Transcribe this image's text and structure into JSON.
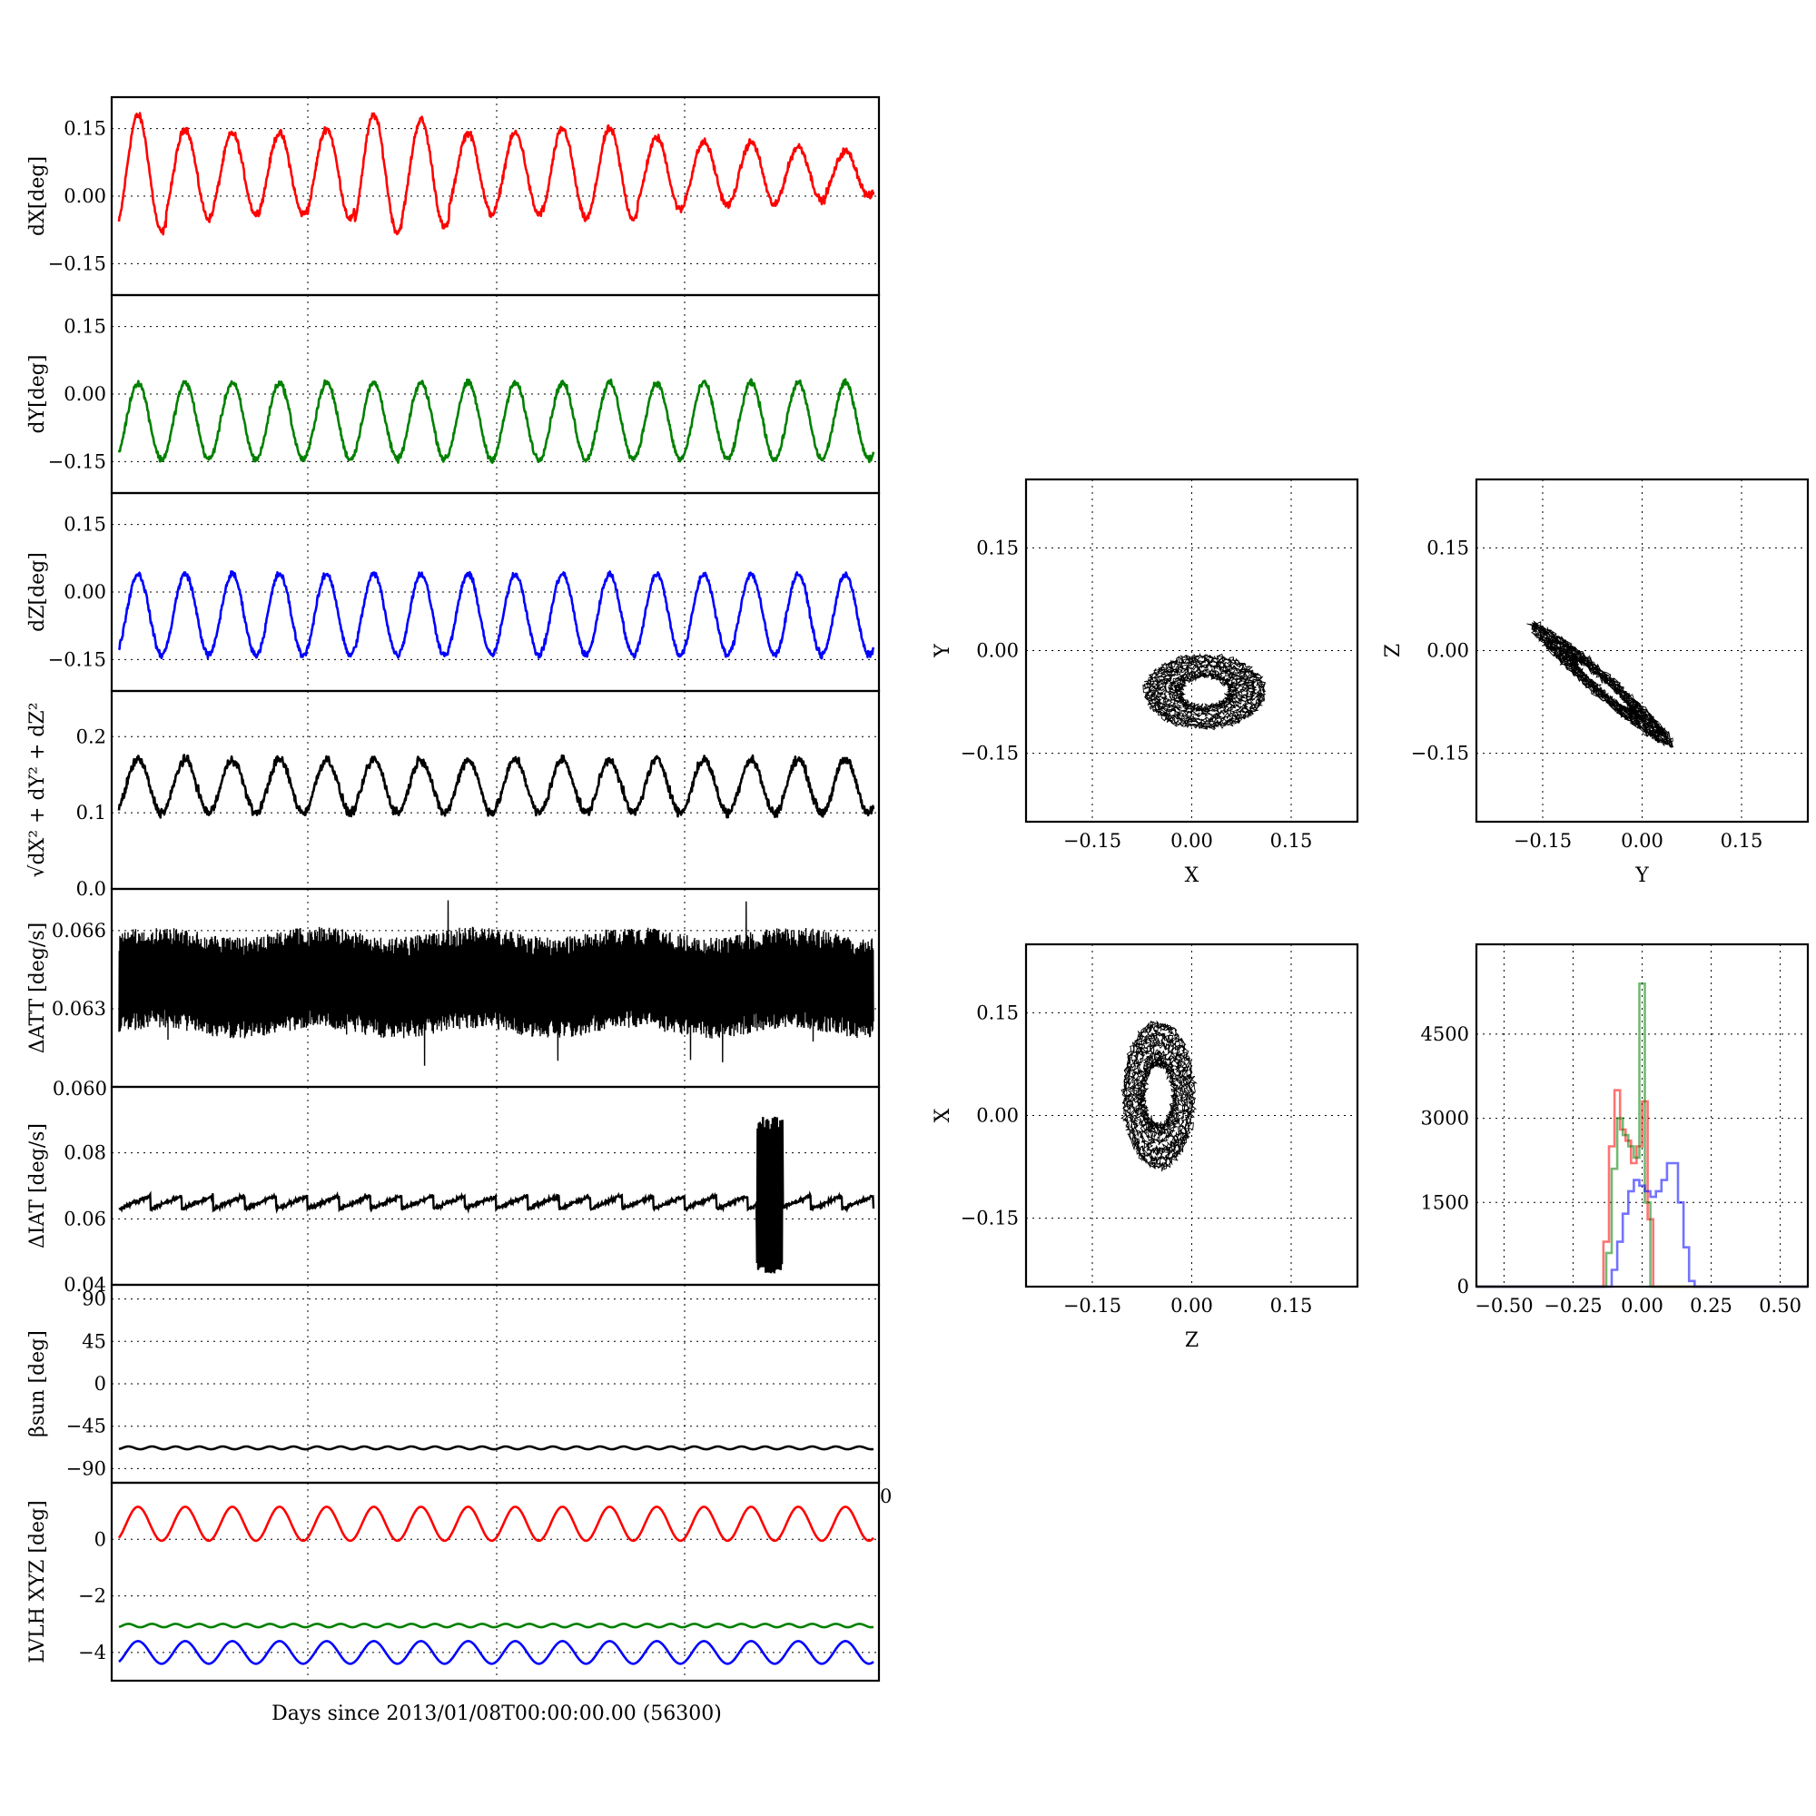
{
  "figure": {
    "xlabel_bottom": "Days since 2013/01/08T00:00:00.00 (56300)",
    "overlap_tick_text": "0.060",
    "corner_tick_text": "0"
  },
  "series_colors": {
    "x": "#ff0000",
    "y": "#008000",
    "z": "#0000ff",
    "k": "#000000"
  },
  "chart_data": [
    {
      "type": "line",
      "ylabel": "dX[deg]",
      "ylim": [
        -0.22,
        0.22
      ],
      "yticks": [
        0.15,
        0.0,
        -0.15
      ],
      "ytick_labels": [
        "0.15",
        "0.00",
        "−0.15"
      ],
      "series": [
        {
          "color": "#ff0000",
          "cycles": 16,
          "mean": 0.05,
          "amplitude": 0.125,
          "noise": 0.008,
          "peaks": [
            0.18,
            0.15,
            0.14,
            0.14,
            0.15,
            0.18,
            0.17,
            0.14,
            0.14,
            0.15,
            0.15,
            0.13,
            0.12,
            0.12,
            0.11,
            0.1
          ]
        }
      ]
    },
    {
      "type": "line",
      "ylabel": "dY[deg]",
      "ylim": [
        -0.22,
        0.22
      ],
      "yticks": [
        0.15,
        0.0,
        -0.15
      ],
      "ytick_labels": [
        "0.15",
        "0.00",
        "−0.15"
      ],
      "series": [
        {
          "color": "#008000",
          "cycles": 16,
          "mean": -0.06,
          "amplitude": 0.085,
          "noise": 0.007
        }
      ]
    },
    {
      "type": "line",
      "ylabel": "dZ[deg]",
      "ylim": [
        -0.22,
        0.22
      ],
      "yticks": [
        0.15,
        0.0,
        -0.15
      ],
      "ytick_labels": [
        "0.15",
        "0.00",
        "−0.15"
      ],
      "series": [
        {
          "color": "#0000ff",
          "cycles": 16,
          "mean": -0.05,
          "amplitude": 0.09,
          "noise": 0.007
        }
      ]
    },
    {
      "type": "line",
      "ylabel": "√dX² + dY² + dZ²",
      "ylim": [
        0,
        0.26
      ],
      "yticks": [
        0.2,
        0.1,
        0.0
      ],
      "ytick_labels": [
        "0.2",
        "0.1",
        "0.0"
      ],
      "series": [
        {
          "color": "#000000",
          "cycles": 16,
          "mean": 0.135,
          "amplitude": 0.035,
          "noise": 0.006
        }
      ]
    },
    {
      "type": "line",
      "ylabel": "ΔATT [deg/s]",
      "ylim": [
        0.06,
        0.0676
      ],
      "yticks": [
        0.066,
        0.063
      ],
      "ytick_labels": [
        "0.066",
        "0.063"
      ],
      "series": [
        {
          "color": "#000000",
          "band_low": 0.0625,
          "band_high": 0.0655
        }
      ]
    },
    {
      "type": "line",
      "ylabel": "ΔIAT [deg/s]",
      "ylim": [
        0.04,
        0.1
      ],
      "yticks": [
        0.08,
        0.06,
        0.04
      ],
      "ytick_labels": [
        "0.08",
        "0.06",
        "0.04"
      ],
      "series": [
        {
          "color": "#000000",
          "sawtooth_base": 0.063,
          "sawtooth_step": 0.004,
          "teeth": 24,
          "burst_range": [
            0.043,
            0.091
          ]
        }
      ]
    },
    {
      "type": "line",
      "ylabel": "βsun [deg]",
      "ylim": [
        -105,
        105
      ],
      "yticks": [
        90,
        45,
        0,
        -45,
        -90
      ],
      "ytick_labels": [
        "90",
        "45",
        "0",
        "−45",
        "−90"
      ],
      "series": [
        {
          "color": "#000000",
          "cycles": 32,
          "mean": -68,
          "amplitude": 1.5
        }
      ]
    },
    {
      "type": "line",
      "ylabel": "LVLH XYZ [deg]",
      "ylim": [
        -5,
        2
      ],
      "yticks": [
        0,
        -2,
        -4
      ],
      "ytick_labels": [
        "0",
        "−2",
        "−4"
      ],
      "series": [
        {
          "color": "#ff0000",
          "cycles": 16,
          "mean": 0.55,
          "amplitude": 0.6
        },
        {
          "color": "#008000",
          "cycles": 32,
          "mean": -3.05,
          "amplitude": 0.06
        },
        {
          "color": "#0000ff",
          "cycles": 16,
          "mean": -4.0,
          "amplitude": 0.4
        }
      ]
    },
    {
      "type": "scatter",
      "xlabel": "X",
      "ylabel": "Y",
      "xlim": [
        -0.25,
        0.25
      ],
      "ylim": [
        -0.25,
        0.25
      ],
      "ticks": [
        -0.15,
        0.0,
        0.15
      ],
      "tick_labels": [
        "−0.15",
        "0.00",
        "0.15"
      ],
      "loop": {
        "cx": 0.02,
        "cy": -0.06,
        "rx": 0.085,
        "ry": 0.05,
        "tilt": 0
      }
    },
    {
      "type": "scatter",
      "xlabel": "Y",
      "ylabel": "Z",
      "xlim": [
        -0.25,
        0.25
      ],
      "ylim": [
        -0.25,
        0.25
      ],
      "ticks": [
        -0.15,
        0.0,
        0.15
      ],
      "tick_labels": [
        "−0.15",
        "0.00",
        "0.15"
      ],
      "loop": {
        "cx": -0.06,
        "cy": -0.05,
        "rx": 0.13,
        "ry": 0.015,
        "tilt": -40
      }
    },
    {
      "type": "scatter",
      "xlabel": "Z",
      "ylabel": "X",
      "xlim": [
        -0.25,
        0.25
      ],
      "ylim": [
        -0.25,
        0.25
      ],
      "ticks": [
        -0.15,
        0.0,
        0.15
      ],
      "tick_labels": [
        "−0.15",
        "0.00",
        "0.15"
      ],
      "loop": {
        "cx": -0.05,
        "cy": 0.03,
        "rx": 0.05,
        "ry": 0.1,
        "tilt": 0
      }
    },
    {
      "type": "histogram",
      "xlim": [
        -0.6,
        0.6
      ],
      "ylim": [
        0,
        6100
      ],
      "xticks": [
        -0.5,
        -0.25,
        0.0,
        0.25,
        0.5
      ],
      "xtick_labels": [
        "−0.50",
        "−0.25",
        "0.00",
        "0.25",
        "0.50"
      ],
      "yticks": [
        0,
        1500,
        3000,
        4500
      ],
      "ytick_labels": [
        "0",
        "1500",
        "3000",
        "4500"
      ],
      "series": [
        {
          "color": "#ff0000",
          "x": [
            -0.15,
            -0.13,
            -0.11,
            -0.09,
            -0.07,
            -0.05,
            -0.03,
            -0.01,
            0.01,
            0.03,
            0.05
          ],
          "values": [
            0,
            800,
            2500,
            3500,
            2800,
            2600,
            2200,
            2500,
            3300,
            1200,
            0
          ]
        },
        {
          "color": "#008000",
          "x": [
            -0.14,
            -0.12,
            -0.1,
            -0.08,
            -0.06,
            -0.04,
            -0.02,
            0.0,
            0.02,
            0.04
          ],
          "values": [
            0,
            600,
            2100,
            3000,
            2700,
            2500,
            2300,
            5400,
            1500,
            0
          ]
        },
        {
          "color": "#0000ff",
          "x": [
            -0.12,
            -0.1,
            -0.08,
            -0.06,
            -0.04,
            -0.02,
            0.0,
            0.02,
            0.04,
            0.06,
            0.08,
            0.1,
            0.12,
            0.14,
            0.16,
            0.18,
            0.2
          ],
          "values": [
            0,
            300,
            800,
            1300,
            1700,
            1900,
            1800,
            1700,
            1600,
            1700,
            1900,
            2200,
            2200,
            1500,
            700,
            100,
            0
          ]
        }
      ]
    }
  ]
}
